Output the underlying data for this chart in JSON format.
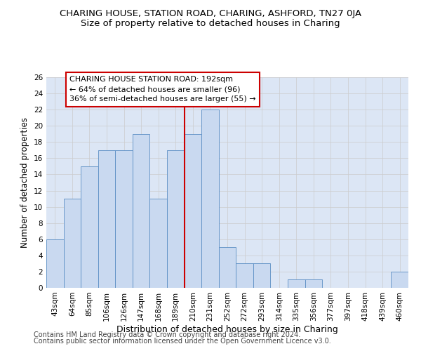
{
  "title": "CHARING HOUSE, STATION ROAD, CHARING, ASHFORD, TN27 0JA",
  "subtitle": "Size of property relative to detached houses in Charing",
  "xlabel": "Distribution of detached houses by size in Charing",
  "ylabel": "Number of detached properties",
  "bar_labels": [
    "43sqm",
    "64sqm",
    "85sqm",
    "106sqm",
    "126sqm",
    "147sqm",
    "168sqm",
    "189sqm",
    "210sqm",
    "231sqm",
    "252sqm",
    "272sqm",
    "293sqm",
    "314sqm",
    "335sqm",
    "356sqm",
    "377sqm",
    "397sqm",
    "418sqm",
    "439sqm",
    "460sqm"
  ],
  "bar_heights": [
    6,
    11,
    15,
    17,
    17,
    19,
    11,
    17,
    19,
    22,
    5,
    3,
    3,
    0,
    1,
    1,
    0,
    0,
    0,
    0,
    2
  ],
  "bar_color": "#c9d9f0",
  "bar_edge_color": "#5b8ec4",
  "vline_pos": 7.5,
  "vline_color": "#cc0000",
  "annotation_text": "CHARING HOUSE STATION ROAD: 192sqm\n← 64% of detached houses are smaller (96)\n36% of semi-detached houses are larger (55) →",
  "annotation_box_color": "#ffffff",
  "annotation_box_edge": "#cc0000",
  "ylim": [
    0,
    26
  ],
  "yticks": [
    0,
    2,
    4,
    6,
    8,
    10,
    12,
    14,
    16,
    18,
    20,
    22,
    24,
    26
  ],
  "grid_color": "#cccccc",
  "bg_color": "#dce6f5",
  "footer1": "Contains HM Land Registry data © Crown copyright and database right 2024.",
  "footer2": "Contains public sector information licensed under the Open Government Licence v3.0.",
  "title_fontsize": 9.5,
  "subtitle_fontsize": 9.5,
  "xlabel_fontsize": 9,
  "ylabel_fontsize": 8.5,
  "tick_fontsize": 7.5,
  "annot_fontsize": 8,
  "footer_fontsize": 7
}
